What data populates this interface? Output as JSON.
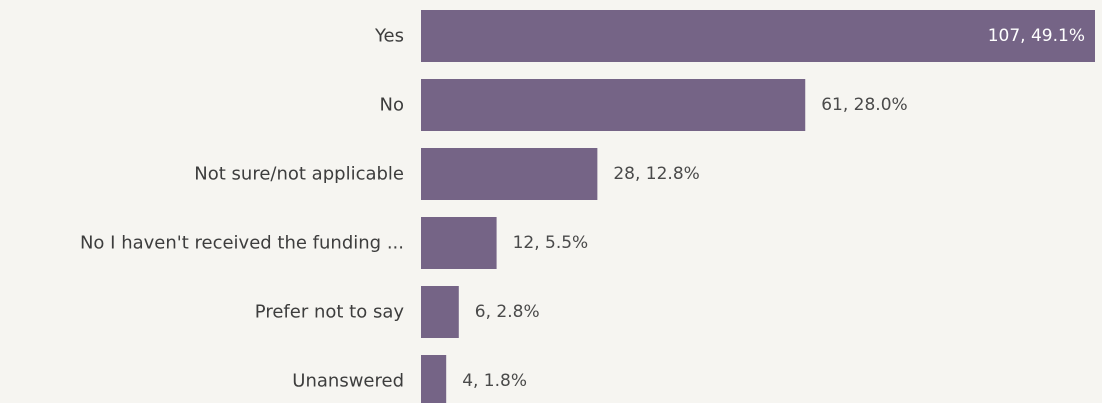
{
  "chart_data": {
    "type": "bar",
    "orientation": "horizontal",
    "categories": [
      "Yes",
      "No",
      "Not sure/not applicable",
      "No I haven't received the funding ...",
      "Prefer not to say",
      "Unanswered"
    ],
    "values": [
      107,
      61,
      28,
      12,
      6,
      4
    ],
    "value_labels": [
      "107, 49.1%",
      "61, 28.0%",
      "28, 12.8%",
      "12, 5.5%",
      "6, 2.8%",
      "4, 1.8%"
    ],
    "percentages": [
      49.1,
      28.0,
      12.8,
      5.5,
      2.8,
      1.8
    ],
    "title": "",
    "xlabel": "",
    "ylabel": "",
    "xlim": [
      0,
      107
    ],
    "grid": false,
    "legend": "none",
    "colors": {
      "bar": "#756486",
      "value_label_inside": "#ffffff",
      "value_label_outside": "#4a4a4a",
      "category_label": "#3d3d3d",
      "background": "#f6f5f1"
    }
  }
}
